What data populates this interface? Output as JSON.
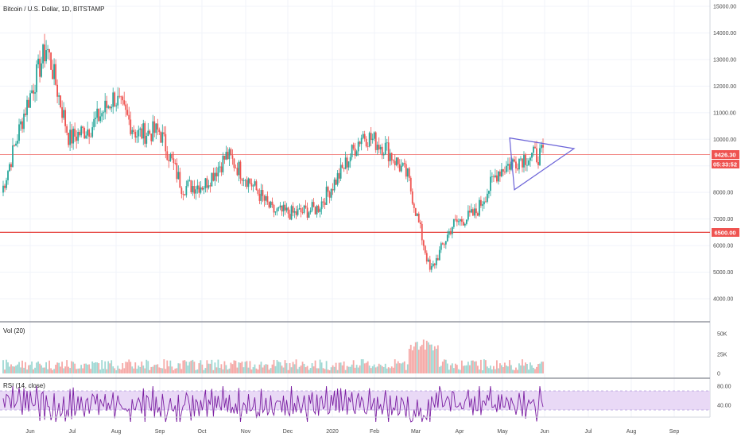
{
  "header": {
    "symbol_title": "Bitcoin / U.S. Dollar, 1D, BITSTAMP",
    "volume_label": "Vol (20)",
    "rsi_label": "RSI (14, close)"
  },
  "price_axis": {
    "ticks": [
      "15000.00",
      "14000.00",
      "13000.00",
      "12000.00",
      "11000.00",
      "10000.00",
      "9000.00",
      "8000.00",
      "7000.00",
      "6000.00",
      "5000.00",
      "4000.00"
    ],
    "tick_values": [
      15000,
      14000,
      13000,
      12000,
      11000,
      10000,
      9000,
      8000,
      7000,
      6000,
      5000,
      4000
    ]
  },
  "price_tags": {
    "last_price": "9426.30",
    "countdown": "05:33:52",
    "support_level": "6500.00"
  },
  "volume_axis": {
    "ticks": [
      "50K",
      "25K",
      "0"
    ]
  },
  "rsi_axis": {
    "ticks": [
      "80.00",
      "40.00"
    ]
  },
  "time_axis": {
    "ticks": [
      "Jun",
      "Jul",
      "Aug",
      "Sep",
      "Oct",
      "Nov",
      "Dec",
      "2020",
      "Feb",
      "Mar",
      "Apr",
      "May",
      "Jun",
      "Jul",
      "Aug",
      "Sep"
    ]
  },
  "colors": {
    "up": "#26a69a",
    "down": "#ef5350",
    "level_line": "#ef5350",
    "triangle": "#6b63d8",
    "rsi_line": "#7b1fa2",
    "rsi_band": "#e7d5f7",
    "grid": "#f0f3fa"
  },
  "chart_data": {
    "type": "candlestick",
    "title": "Bitcoin / U.S. Dollar, 1D, BITSTAMP",
    "ylim": [
      3500,
      15300
    ],
    "horizontal_levels": [
      9426.3,
      6500
    ],
    "months": [
      "Jun",
      "Jul",
      "Aug",
      "Sep",
      "Oct",
      "Nov",
      "Dec",
      "2020",
      "Feb",
      "Mar",
      "Apr",
      "May",
      "Jun",
      "Jul",
      "Aug",
      "Sep"
    ],
    "monthly_close_path": [
      {
        "month": "Jun",
        "close": 8000
      },
      {
        "month": "Jun",
        "close": 11000
      },
      {
        "month": "Jul",
        "close": 13500
      },
      {
        "month": "Jul",
        "close": 10000
      },
      {
        "month": "Aug",
        "close": 10500
      },
      {
        "month": "Aug",
        "close": 11600
      },
      {
        "month": "Sep",
        "close": 10200
      },
      {
        "month": "Sep",
        "close": 10300
      },
      {
        "month": "Oct",
        "close": 8200
      },
      {
        "month": "Oct",
        "close": 8300
      },
      {
        "month": "Nov",
        "close": 9400
      },
      {
        "month": "Nov",
        "close": 8400
      },
      {
        "month": "Dec",
        "close": 7300
      },
      {
        "month": "Dec",
        "close": 7200
      },
      {
        "month": "2020",
        "close": 7400
      },
      {
        "month": "2020",
        "close": 8700
      },
      {
        "month": "Feb",
        "close": 10200
      },
      {
        "month": "Feb",
        "close": 9700
      },
      {
        "month": "Mar",
        "close": 8600
      },
      {
        "month": "Mar",
        "close": 5000
      },
      {
        "month": "Apr",
        "close": 6800
      },
      {
        "month": "Apr",
        "close": 7200
      },
      {
        "month": "May",
        "close": 8800
      },
      {
        "month": "May",
        "close": 9300
      },
      {
        "month": "Jun",
        "close": 9426
      }
    ],
    "triangle_pattern": [
      {
        "month": "May",
        "price": 10050
      },
      {
        "month": "Jun",
        "price": 9650
      },
      {
        "month": "May",
        "price": 8100
      }
    ]
  }
}
